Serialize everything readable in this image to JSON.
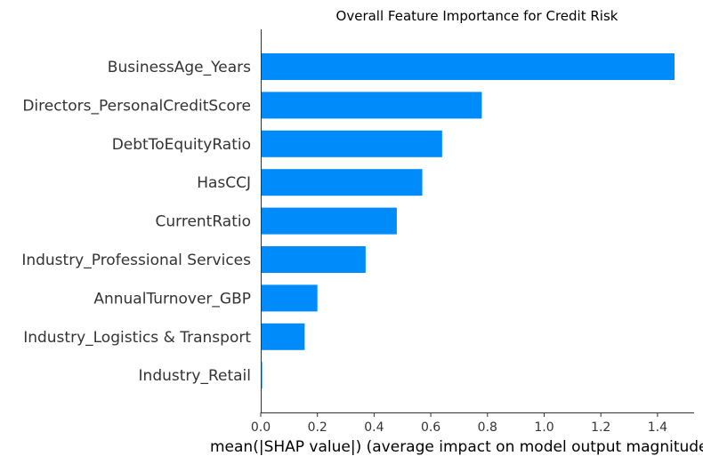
{
  "chart_data": {
    "type": "bar",
    "orientation": "horizontal",
    "title": "Overall Feature Importance for Credit Risk",
    "xlabel": "mean(|SHAP value|) (average impact on model output magnitude)",
    "ylabel": "",
    "xlim": [
      0,
      1.5
    ],
    "xticks": [
      "0.0",
      "0.2",
      "0.4",
      "0.6",
      "0.8",
      "1.0",
      "1.2",
      "1.4"
    ],
    "grid": false,
    "bar_color": "#008bfb",
    "categories": [
      "BusinessAge_Years",
      "Directors_PersonalCreditScore",
      "DebtToEquityRatio",
      "HasCCJ",
      "CurrentRatio",
      "Industry_Professional Services",
      "AnnualTurnover_GBP",
      "Industry_Logistics & Transport",
      "Industry_Retail"
    ],
    "values": [
      1.46,
      0.78,
      0.64,
      0.57,
      0.48,
      0.37,
      0.2,
      0.155,
      0.005
    ]
  }
}
